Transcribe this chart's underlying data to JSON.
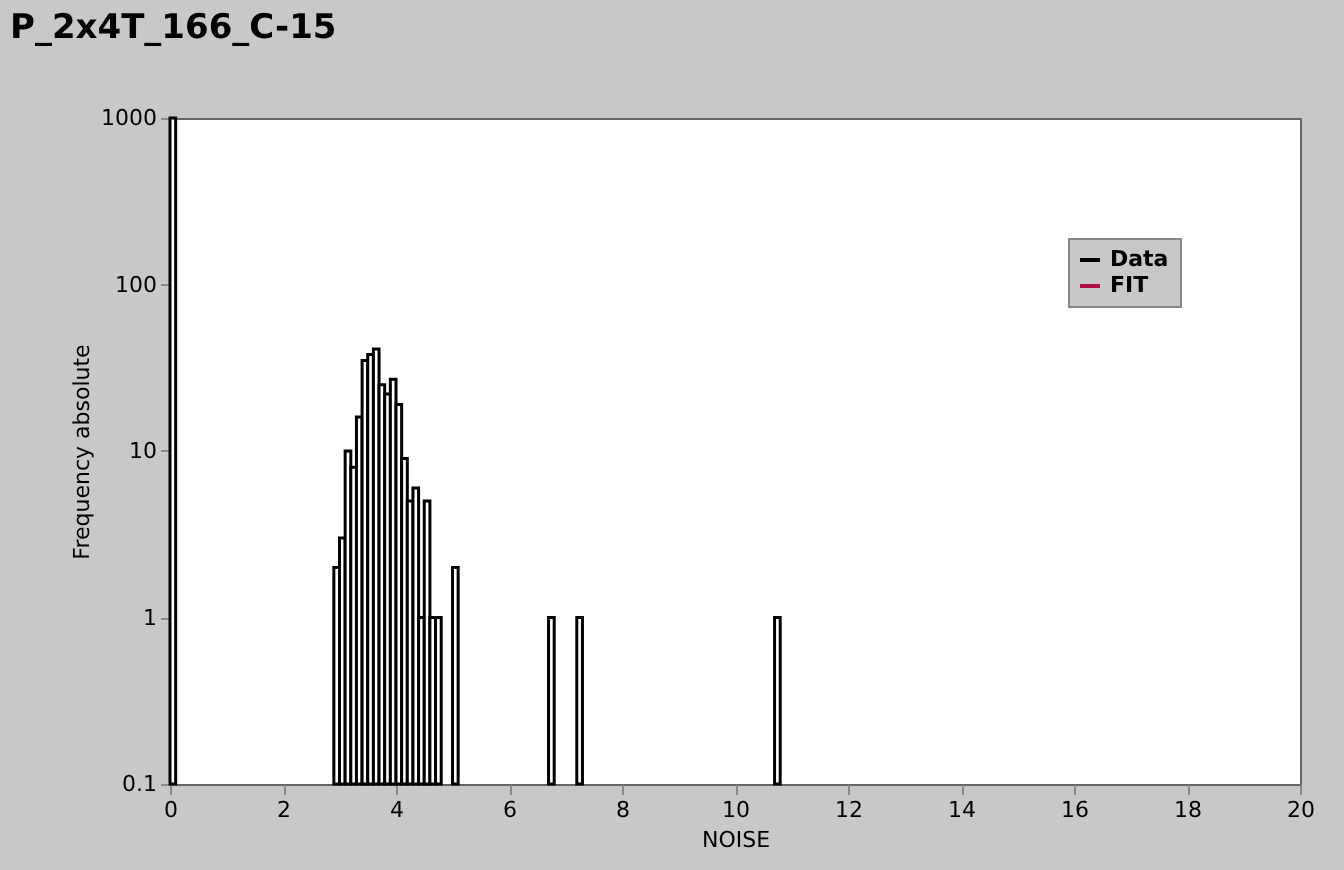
{
  "chart_data": {
    "type": "histogram",
    "title": "P_2x4T_166_C-15",
    "xlabel": "NOISE",
    "ylabel": "Frequency absolute",
    "bins": [
      0,
      0.1,
      2.9,
      3.0,
      3.1,
      3.2,
      3.3,
      3.4,
      3.5,
      3.6,
      3.7,
      3.8,
      3.9,
      4.0,
      4.1,
      4.2,
      4.3,
      4.4,
      4.5,
      4.6,
      4.7,
      4.8,
      5.0,
      5.1,
      6.7,
      6.8,
      7.2,
      7.3,
      10.7,
      10.8
    ],
    "series": [
      {
        "name": "Data",
        "color": "#000000",
        "values": [
          1000,
          null,
          2,
          3,
          10,
          8,
          16,
          35,
          38,
          41,
          25,
          22,
          27,
          19,
          9,
          5,
          6,
          1,
          5,
          1,
          1,
          null,
          2,
          null,
          1,
          null,
          1,
          null,
          1
        ]
      },
      {
        "name": "FIT",
        "type": "line",
        "color": "#b01048"
      }
    ],
    "xlim": [
      0,
      20
    ],
    "xticks": [
      0,
      2,
      4,
      6,
      8,
      10,
      12,
      14,
      16,
      18,
      20
    ],
    "ylim": [
      0.1,
      1000
    ],
    "yticks": [
      0.1,
      1,
      10,
      100,
      1000
    ],
    "log": "y",
    "legend": "top right"
  }
}
